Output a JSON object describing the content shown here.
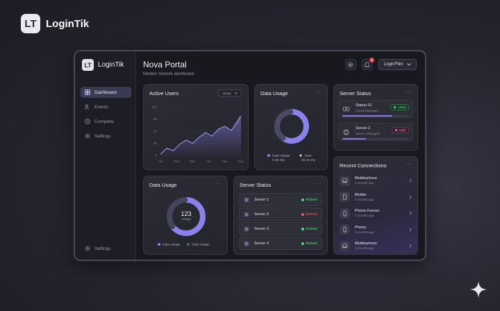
{
  "brand": {
    "name": "LoginTik",
    "logo_letters": "LT"
  },
  "app": {
    "sidebar": {
      "brand_name": "LoginTik",
      "items": [
        {
          "label": "Dashboard",
          "icon": "grid-icon",
          "active": true
        },
        {
          "label": "Events",
          "icon": "users-icon",
          "active": false
        },
        {
          "label": "Complete",
          "icon": "clock-icon",
          "active": false
        },
        {
          "label": "Settings",
          "icon": "gear-icon",
          "active": false
        }
      ],
      "bottom_settings": "Settings"
    },
    "header": {
      "title": "Nova Portal",
      "subtitle": "Modern network dashboard",
      "notification_count": "3",
      "user_label": "Login'Flim"
    },
    "active_users": {
      "title": "Active Users",
      "range_select": "Linear",
      "chart_data": {
        "type": "area",
        "categories": [
          "Jan",
          "Feb",
          "Mar",
          "Apr",
          "Sey",
          "Sun"
        ],
        "yticks": [
          "0",
          "30",
          "60",
          "90",
          "120"
        ],
        "ylim": [
          0,
          120
        ],
        "series": [
          {
            "x": [
              0,
              0.4,
              0.8,
              1.2,
              1.6,
              2.0,
              2.4,
              2.8,
              3.2,
              3.6,
              4.0,
              4.4,
              4.8,
              5.0
            ],
            "values": [
              3,
              18,
              12,
              28,
              38,
              30,
              45,
              57,
              48,
              65,
              72,
              62,
              86,
              98
            ]
          }
        ]
      }
    },
    "data_usage_top": {
      "title": "Data Usage",
      "chart_data": {
        "type": "pie",
        "style": "donut",
        "slices": [
          {
            "label": "Data Usage",
            "value": 60,
            "color": "#8a82ea"
          },
          {
            "label": "Data",
            "value": 40,
            "color": "#4a4a66"
          }
        ]
      },
      "legend": [
        {
          "label": "Data Usage",
          "value": "0.30 GB",
          "color": "#8a82ea"
        },
        {
          "label": "Data",
          "value": "28.30 GB",
          "color": "#9a9ab8"
        }
      ]
    },
    "server_status_top": {
      "title": "Server Status",
      "rows": [
        {
          "name": "Status 61",
          "detail": "Ouniol Managen",
          "badge": "Used",
          "badge_color": "#4ade80",
          "progress": 0.75,
          "icon": "monitor-icon"
        },
        {
          "name": "Server 2",
          "detail": "Server Dritanged",
          "badge": "High",
          "badge_color": "#f472b6",
          "progress": 0.35,
          "icon": "globe-icon"
        }
      ]
    },
    "data_usage_bottom": {
      "title": "Data Usage",
      "center_value": "123",
      "center_label": "Usage",
      "chart_data": {
        "type": "pie",
        "style": "donut",
        "slices": [
          {
            "label": "Data Usage",
            "value": 65,
            "color": "#8a82ea"
          },
          {
            "label": "Data Usage",
            "value": 35,
            "color": "#44445c"
          }
        ]
      },
      "legend": [
        {
          "label": "Data Usage",
          "color": "#8a82ea"
        },
        {
          "label": "Data Usage",
          "color": "#5a5a70"
        }
      ]
    },
    "server_status_bottom": {
      "title": "Server Status",
      "rows": [
        {
          "name": "Server 1",
          "status": "Actived",
          "color": "#4ade80"
        },
        {
          "name": "Server 2",
          "status": "Actived",
          "color": "#ef5a5a"
        },
        {
          "name": "Server 3",
          "status": "Actived",
          "color": "#4ade80"
        },
        {
          "name": "Server 4",
          "status": "Actived",
          "color": "#4ade80"
        }
      ]
    },
    "recent_connections": {
      "title": "Recent Connections",
      "items": [
        {
          "name": "Mobilephone",
          "time": "3 months ago",
          "icon": "laptop-icon"
        },
        {
          "name": "Mobile",
          "time": "5 months ago",
          "icon": "tablet-icon"
        },
        {
          "name": "Phone Funner",
          "time": "5 months ago",
          "icon": "phone-icon"
        },
        {
          "name": "Phone",
          "time": "5 months ago",
          "icon": "phone-icon"
        },
        {
          "name": "Mobilephone",
          "time": "5 months ago",
          "icon": "laptop-icon"
        }
      ]
    }
  }
}
